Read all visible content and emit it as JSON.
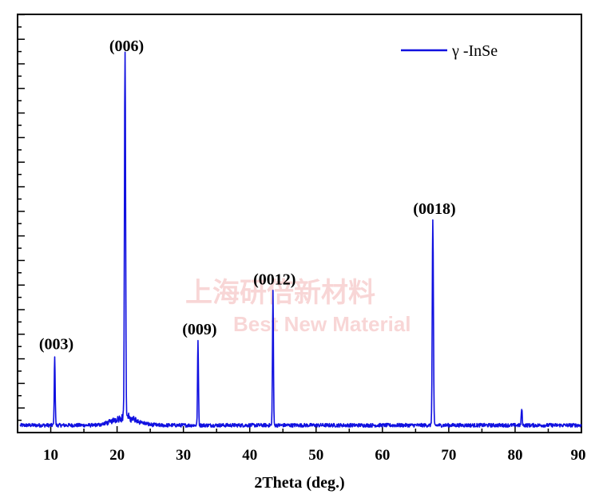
{
  "chart_data": {
    "type": "line",
    "xlabel": "2Theta (deg.)",
    "ylabel": "",
    "xlim": [
      5,
      90
    ],
    "ylim": [
      0,
      100
    ],
    "x_ticks": [
      10,
      20,
      30,
      40,
      50,
      60,
      70,
      80,
      90
    ],
    "y_ticks_labeled": false,
    "grid": false,
    "legend": {
      "position": "top-right",
      "entries": [
        "γ  -InSe"
      ]
    },
    "series": [
      {
        "name": "γ  -InSe",
        "color": "#1010e0",
        "peaks": [
          {
            "x": 10.6,
            "y": 19,
            "label": "(003)"
          },
          {
            "x": 21.2,
            "y": 100,
            "label": "(006)"
          },
          {
            "x": 32.2,
            "y": 23,
            "label": "(009)"
          },
          {
            "x": 43.5,
            "y": 36.5,
            "label": "(0012)"
          },
          {
            "x": 67.6,
            "y": 55.7,
            "label": "(0018)"
          },
          {
            "x": 81.0,
            "y": 4.5,
            "label": ""
          }
        ]
      }
    ],
    "watermark": {
      "line1": "上海研倍新材料",
      "line2": "Best New Material"
    }
  }
}
